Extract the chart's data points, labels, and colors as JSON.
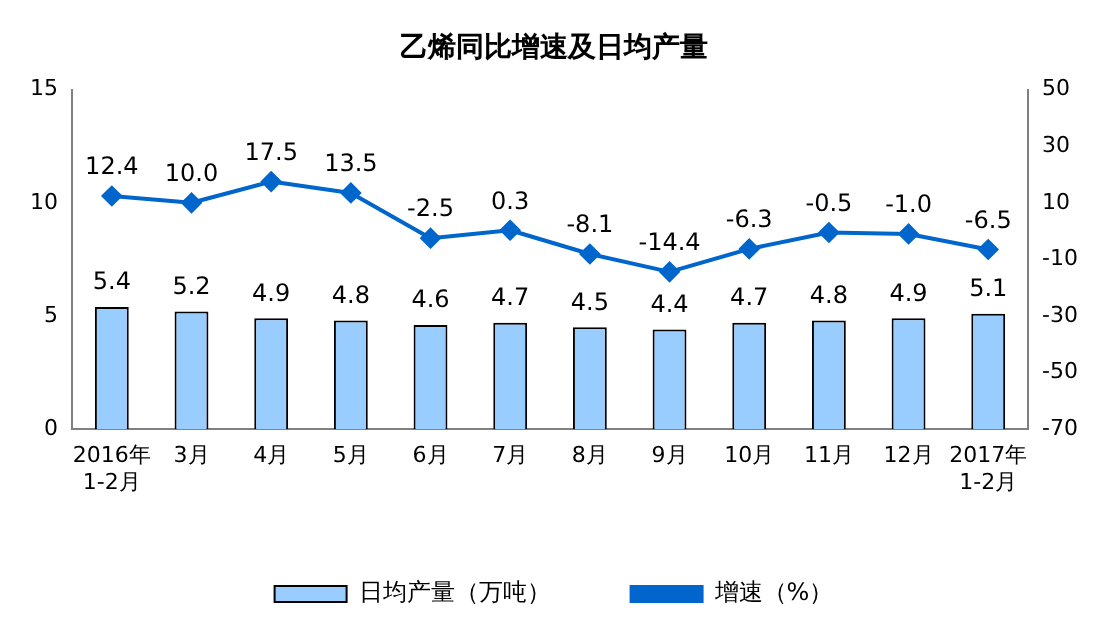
{
  "chart_data": {
    "type": "bar",
    "title": "乙烯同比增速及日均产量",
    "categories": [
      "2016年\n1-2月",
      "3月",
      "4月",
      "5月",
      "6月",
      "7月",
      "8月",
      "9月",
      "10月",
      "11月",
      "12月",
      "2017年\n1-2月"
    ],
    "series": [
      {
        "name": "日均产量（万吨）",
        "color": "#99ccff",
        "values": [
          5.4,
          5.2,
          4.9,
          4.8,
          4.6,
          4.7,
          4.5,
          4.4,
          4.7,
          4.8,
          4.9,
          5.1
        ],
        "value_labels": [
          "5.4",
          "5.2",
          "4.9",
          "4.8",
          "4.6",
          "4.7",
          "4.5",
          "4.4",
          "4.7",
          "4.8",
          "4.9",
          "5.1"
        ]
      },
      {
        "name": "增速（%）",
        "type": "line",
        "axis": "y2",
        "color": "#0066cc",
        "values": [
          12.4,
          10.0,
          17.5,
          13.5,
          -2.5,
          0.3,
          -8.1,
          -14.4,
          -6.3,
          -0.5,
          -1.0,
          -6.5
        ],
        "value_labels": [
          "12.4",
          "10.0",
          "17.5",
          "13.5",
          "-2.5",
          "0.3",
          "-8.1",
          "-14.4",
          "-6.3",
          "-0.5",
          "-1.0",
          "-6.5"
        ]
      }
    ],
    "ylim": [
      0,
      15
    ],
    "yticks": [
      0,
      5,
      10,
      15
    ],
    "y2lim": [
      -70,
      50
    ],
    "y2ticks": [
      -70,
      -50,
      -30,
      -10,
      10,
      30,
      50
    ],
    "grid": false,
    "legend": "bottom",
    "marker": "diamond",
    "line_style": "solid"
  }
}
